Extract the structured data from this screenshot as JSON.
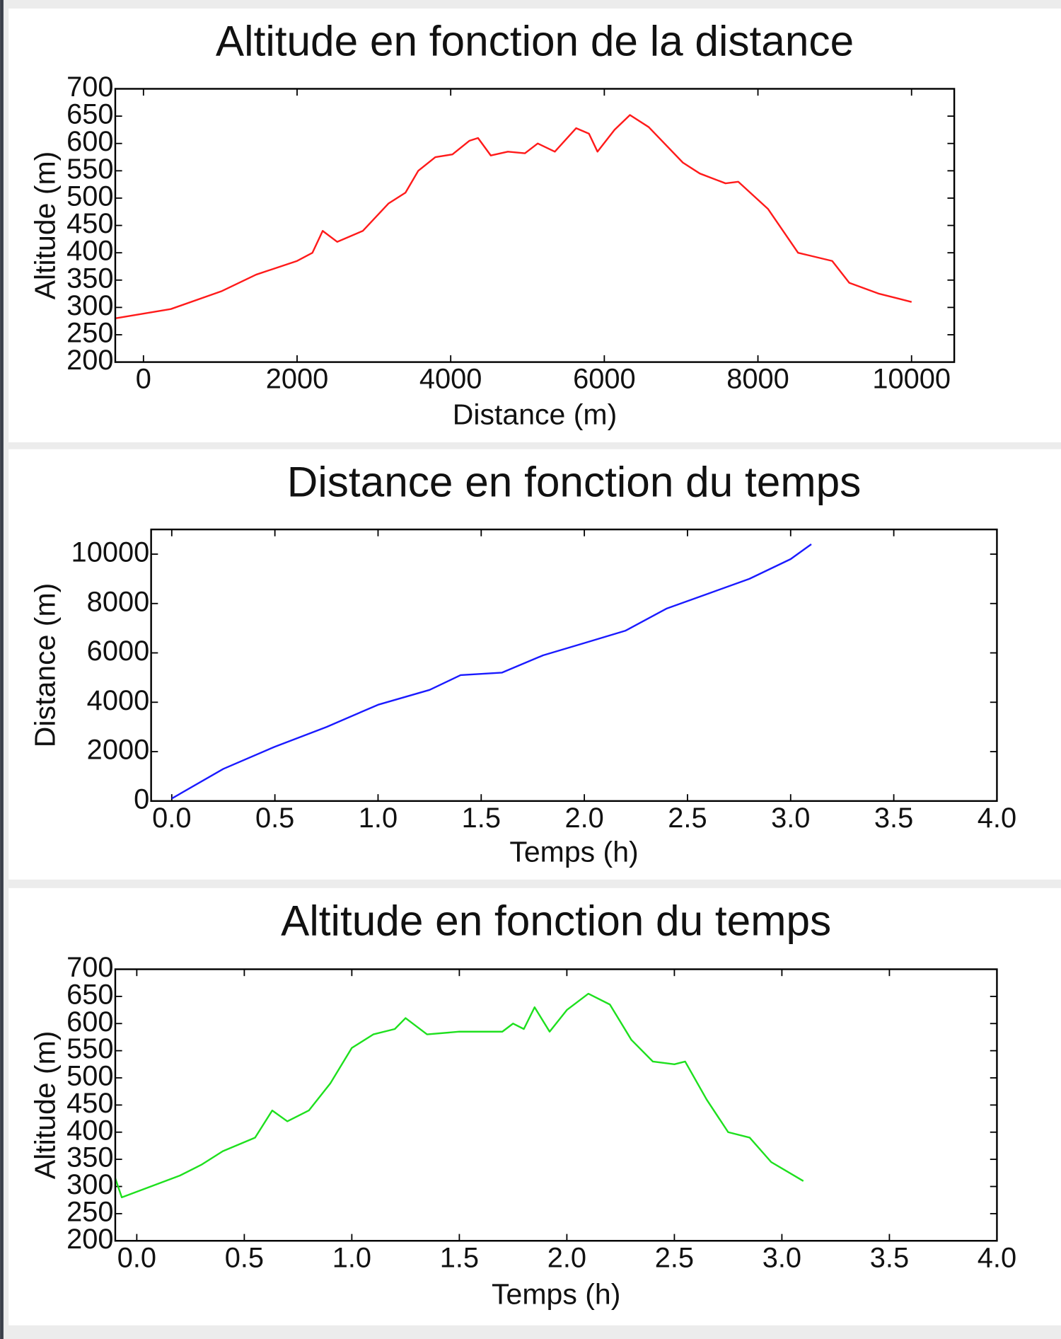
{
  "chart_data": [
    {
      "type": "line",
      "title": "Altitude en fonction de la distance",
      "x_label": "Distance (m)",
      "y_label": "Altitude (m)",
      "color": "#ff1a1a",
      "x": [
        -367,
        356,
        1022,
        1467,
        2000,
        2200,
        2333,
        2522,
        2856,
        3189,
        3411,
        3578,
        3800,
        4022,
        4244,
        4356,
        4522,
        4744,
        4967,
        5133,
        5356,
        5633,
        5800,
        5911,
        6133,
        6333,
        6578,
        7022,
        7244,
        7578,
        7744,
        8133,
        8522,
        8967,
        9189,
        9578,
        10000
      ],
      "values": [
        280,
        297,
        330,
        360,
        385,
        400,
        440,
        420,
        440,
        490,
        510,
        550,
        575,
        580,
        605,
        610,
        578,
        585,
        582,
        600,
        585,
        628,
        618,
        585,
        625,
        652,
        630,
        565,
        545,
        527,
        530,
        480,
        400,
        385,
        345,
        325,
        310
      ],
      "xlim": [
        -367,
        10556
      ],
      "ylim": [
        200,
        700
      ],
      "xticks": [
        0,
        2000,
        4000,
        6000,
        8000,
        10000
      ],
      "yticks": [
        200,
        250,
        300,
        350,
        400,
        450,
        500,
        550,
        600,
        650,
        700
      ]
    },
    {
      "type": "line",
      "title": "Distance en fonction du temps",
      "x_label": "Temps (h)",
      "y_label": "Distance (m)",
      "color": "#1a1aff",
      "x": [
        0,
        0.25,
        0.5,
        0.75,
        1.0,
        1.25,
        1.4,
        1.6,
        1.8,
        2.0,
        2.2,
        2.4,
        2.6,
        2.8,
        3.0,
        3.1
      ],
      "values": [
        100,
        1300,
        2200,
        3000,
        3900,
        4500,
        5100,
        5200,
        5900,
        6400,
        6900,
        7800,
        8400,
        9000,
        9800,
        10400
      ],
      "xlim": [
        -0.1,
        4.0
      ],
      "ylim": [
        0,
        11000
      ],
      "xticks": [
        {
          "value": 0,
          "label": "0.0"
        },
        0.5,
        {
          "value": 1,
          "label": "1.0"
        },
        1.5,
        {
          "value": 2,
          "label": "2.0"
        },
        2.5,
        {
          "value": 3,
          "label": "3.0"
        },
        3.5,
        {
          "value": 4,
          "label": "4.0"
        }
      ],
      "yticks": [
        0,
        2000,
        4000,
        6000,
        8000,
        10000
      ]
    },
    {
      "type": "line",
      "title": "Altitude en fonction du temps",
      "x_label": "Temps (h)",
      "y_label": "Altitude (m)",
      "color": "#1ee01e",
      "x": [
        -0.1,
        -0.07,
        0.2,
        0.3,
        0.4,
        0.55,
        0.63,
        0.7,
        0.8,
        0.9,
        1.0,
        1.1,
        1.2,
        1.25,
        1.35,
        1.5,
        1.7,
        1.75,
        1.8,
        1.85,
        1.92,
        2.0,
        2.1,
        2.2,
        2.3,
        2.4,
        2.5,
        2.55,
        2.65,
        2.75,
        2.85,
        2.95,
        3.1
      ],
      "values": [
        315,
        280,
        320,
        340,
        365,
        390,
        440,
        420,
        440,
        490,
        555,
        580,
        590,
        610,
        580,
        585,
        585,
        600,
        590,
        630,
        585,
        625,
        655,
        635,
        570,
        530,
        525,
        530,
        460,
        400,
        390,
        345,
        310
      ],
      "xlim": [
        -0.1,
        4.0
      ],
      "ylim": [
        200,
        700
      ],
      "xticks": [
        {
          "value": 0,
          "label": "0.0"
        },
        0.5,
        {
          "value": 1,
          "label": "1.0"
        },
        1.5,
        {
          "value": 2,
          "label": "2.0"
        },
        2.5,
        {
          "value": 3,
          "label": "3.0"
        },
        3.5,
        {
          "value": 4,
          "label": "4.0"
        }
      ],
      "yticks": [
        200,
        250,
        300,
        350,
        400,
        450,
        500,
        550,
        600,
        650,
        700
      ]
    }
  ]
}
